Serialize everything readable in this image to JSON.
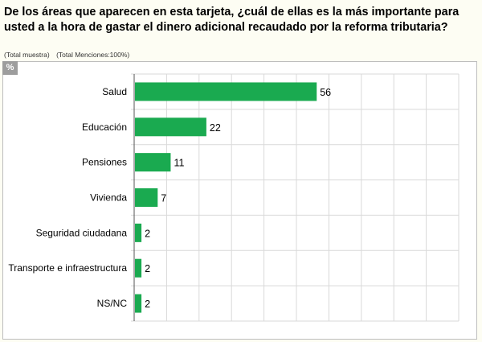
{
  "header": {
    "title": "De los áreas que aparecen en esta tarjeta, ¿cuál de ellas es la más importante para usted a la hora de gastar el dinero adicional recaudado por la reforma tributaria?",
    "subtitle_sample": "(Total muestra)",
    "subtitle_mentions": "(Total Menciones:100%)",
    "unit": "%"
  },
  "colors": {
    "bar": "#1aaa50",
    "grid": "#d9d9d9",
    "axis": "#555555"
  },
  "chart_data": {
    "type": "bar",
    "orientation": "horizontal",
    "title": "De los áreas que aparecen en esta tarjeta, ¿cuál de ellas es la más importante para usted a la hora de gastar el dinero adicional recaudado por la reforma tributaria?",
    "categories": [
      "Salud",
      "Educación",
      "Pensiones",
      "Vivienda",
      "Seguridad ciudadana",
      "Transporte e infraestructura",
      "NS/NC"
    ],
    "values": [
      56,
      22,
      11,
      7,
      2,
      2,
      2
    ],
    "xlabel": "",
    "ylabel": "%",
    "xlim": [
      0,
      100
    ],
    "grid": true,
    "legend": "none"
  }
}
